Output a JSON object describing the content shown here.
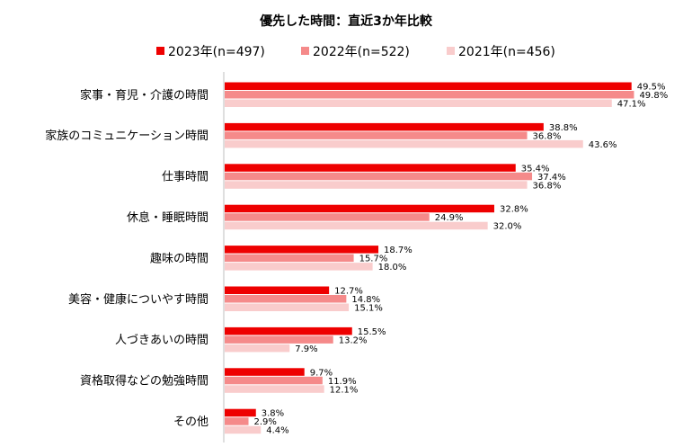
{
  "chart_data": {
    "type": "bar",
    "orientation": "horizontal",
    "title": "優先した時間：直近3か年比較",
    "categories": [
      "家事・育児・介護の時間",
      "家族のコミュニケーション時間",
      "仕事時間",
      "休息・睡眠時間",
      "趣味の時間",
      "美容・健康についやす時間",
      "人づきあいの時間",
      "資格取得などの勉強時間",
      "その他"
    ],
    "series": [
      {
        "name": "2023年(n=497)",
        "color": "#ee0000",
        "values": [
          49.5,
          38.8,
          35.4,
          32.8,
          18.7,
          12.7,
          15.5,
          9.7,
          3.8
        ],
        "labels": [
          "49.5%",
          "38.8%",
          "35.4%",
          "32.8%",
          "18.7%",
          "12.7%",
          "15.5%",
          "9.7%",
          "3.8%"
        ]
      },
      {
        "name": "2022年(n=522)",
        "color": "#f58a8a",
        "values": [
          49.8,
          36.8,
          37.4,
          24.9,
          15.7,
          14.8,
          13.2,
          11.9,
          2.9
        ],
        "labels": [
          "49.8%",
          "36.8%",
          "37.4%",
          "24.9%",
          "15.7%",
          "14.8%",
          "13.2%",
          "11.9%",
          "2.9%"
        ]
      },
      {
        "name": "2021年(n=456)",
        "color": "#f9cccc",
        "values": [
          47.1,
          43.6,
          36.8,
          32.0,
          18.0,
          15.1,
          7.9,
          12.1,
          4.4
        ],
        "labels": [
          "47.1%",
          "43.6%",
          "36.8%",
          "32.0%",
          "18.0%",
          "15.1%",
          "7.9%",
          "12.1%",
          "4.4%"
        ]
      }
    ],
    "xlim": [
      0,
      51.5
    ],
    "grid": false,
    "legend": "top-center"
  }
}
